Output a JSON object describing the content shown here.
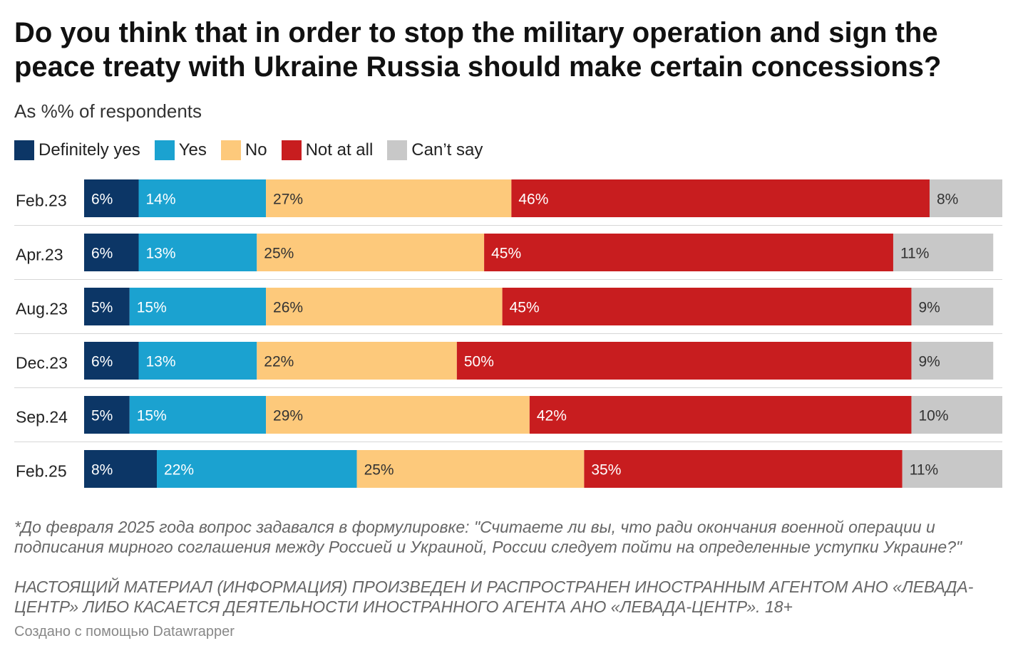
{
  "title": "Do you think that in order to stop the military operation and sign the peace treaty with Ukraine Russia should make certain concessions?",
  "subtitle": "As %% of respondents",
  "legend": [
    {
      "label": "Definitely yes",
      "color": "#0c3666"
    },
    {
      "label": "Yes",
      "color": "#1ba2d0"
    },
    {
      "label": "No",
      "color": "#fdc97b"
    },
    {
      "label": "Not at all",
      "color": "#c81d1f"
    },
    {
      "label": "Can’t say",
      "color": "#c8c8c8"
    }
  ],
  "chart_data": {
    "type": "bar",
    "orientation": "horizontal",
    "stacked": true,
    "categories": [
      "Feb.23",
      "Apr.23",
      "Aug.23",
      "Dec.23",
      "Sep.24",
      "Feb.25"
    ],
    "series": [
      {
        "name": "Definitely yes",
        "color": "#0c3666",
        "label_color": "#ffffff",
        "values": [
          6,
          6,
          5,
          6,
          5,
          8
        ]
      },
      {
        "name": "Yes",
        "color": "#1ba2d0",
        "label_color": "#ffffff",
        "values": [
          14,
          13,
          15,
          13,
          15,
          22
        ]
      },
      {
        "name": "No",
        "color": "#fdc97b",
        "label_color": "#333333",
        "values": [
          27,
          25,
          26,
          22,
          29,
          25
        ]
      },
      {
        "name": "Not at all",
        "color": "#c81d1f",
        "label_color": "#ffffff",
        "values": [
          46,
          45,
          45,
          50,
          42,
          35
        ]
      },
      {
        "name": "Can’t say",
        "color": "#c8c8c8",
        "label_color": "#333333",
        "values": [
          8,
          11,
          9,
          9,
          10,
          11
        ]
      }
    ],
    "value_suffix": "%",
    "xlim": [
      0,
      101
    ],
    "legend_position": "top-left"
  },
  "footnote": "*До февраля 2025 года вопрос задавался в формулировке: \"Считаете ли вы, что ради окончания военной операции и подписания мирного соглашения между Россией и Украиной, России следует пойти на определенные уступки Украине?\"",
  "disclaimer": "НАСТОЯЩИЙ МАТЕРИАЛ (ИНФОРМАЦИЯ) ПРОИЗВЕДЕН И РАСПРОСТРАНЕН ИНОСТРАННЫМ АГЕНТОМ АНО «ЛЕВАДА-ЦЕНТР» ЛИБО КАСАЕТСЯ ДЕЯТЕЛЬНОСТИ ИНОСТРАННОГО АГЕНТА АНО «ЛЕВАДА-ЦЕНТР». 18+",
  "credit": "Создано с помощью Datawrapper"
}
